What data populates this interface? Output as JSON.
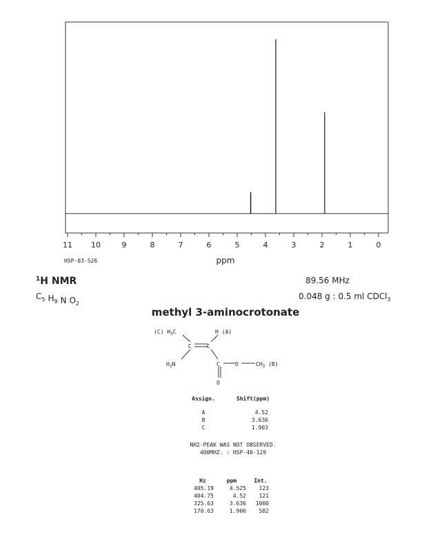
{
  "chart_data": {
    "type": "spectrum",
    "xlabel": "ppm",
    "xlim": [
      11,
      0
    ],
    "xticks": [
      11,
      10,
      9,
      8,
      7,
      6,
      5,
      4,
      3,
      2,
      1,
      0
    ],
    "ylim": [
      -111,
      1099
    ]
  },
  "spectrum_id": "HSP-03-526",
  "header": {
    "nucleus": {
      "sup": "1",
      "text": "H NMR"
    },
    "formula": [
      {
        "el": "C",
        "n": "5"
      },
      {
        "el": "H",
        "n": "9"
      },
      {
        "el": "N"
      },
      {
        "el": "O",
        "n": "2"
      }
    ],
    "frequency": "89.56 MHz",
    "sample": {
      "text": "0.048 g : 0.5 ml CDCl",
      "sub": "3"
    }
  },
  "compound": "methyl 3-aminocrotonate",
  "structure": {
    "labels": [
      {
        "text": "(C) H",
        "sub": "3",
        "after": "C"
      },
      {
        "text": "H (A)"
      },
      {
        "text": "C"
      },
      {
        "text": "C"
      },
      {
        "text": "H",
        "sub": "2",
        "after": "N"
      },
      {
        "text": "C"
      },
      {
        "text": "O"
      },
      {
        "text": "CH",
        "sub": "3",
        "after": " (B)"
      },
      {
        "text": "O"
      }
    ]
  },
  "assign_table": {
    "headers": [
      "Assign.",
      "Shift(ppm)"
    ],
    "rows": [
      [
        "A",
        4.52
      ],
      [
        "B",
        3.636
      ],
      [
        "C",
        1.903
      ]
    ]
  },
  "notes": [
    "NH2-PEAK WAS NOT OBSERVED.",
    "400MHZ. : HSP-40-129"
  ],
  "peak_table": {
    "headers": [
      "Hz",
      "ppm",
      "Int."
    ],
    "rows": [
      [
        405.19,
        4.525,
        123
      ],
      [
        404.75,
        4.52,
        121
      ],
      [
        325.63,
        3.636,
        1000
      ],
      [
        170.63,
        1.906,
        582
      ]
    ]
  }
}
